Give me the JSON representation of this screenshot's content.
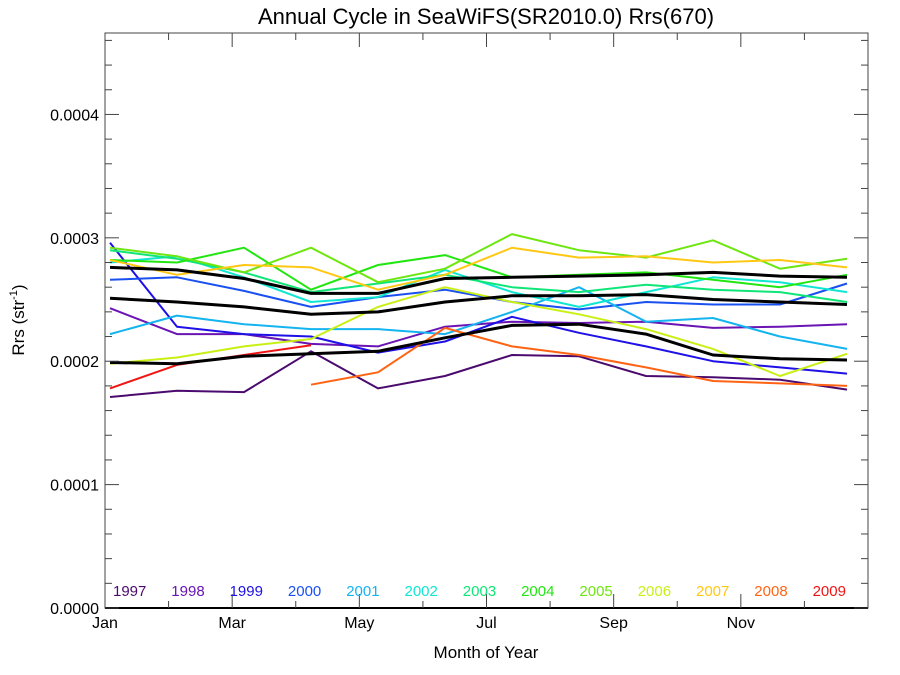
{
  "chart_data": {
    "type": "line",
    "title": "Annual Cycle in SeaWiFS(SR2010.0) Rrs(670)",
    "xlabel": "Month of Year",
    "ylabel": "Rrs (str",
    "ylabel_superscript": "-1",
    "ylabel_suffix": ")",
    "xlim": [
      1,
      13
    ],
    "ylim": [
      0.0,
      0.000466
    ],
    "x_ticks": [
      {
        "value": 1,
        "label": "Jan"
      },
      {
        "value": 3,
        "label": "Mar"
      },
      {
        "value": 5,
        "label": "May"
      },
      {
        "value": 7,
        "label": "Jul"
      },
      {
        "value": 9,
        "label": "Sep"
      },
      {
        "value": 11,
        "label": "Nov"
      }
    ],
    "y_ticks": [
      {
        "value": 0.0,
        "label": "0.0000"
      },
      {
        "value": 0.0001,
        "label": "0.0001"
      },
      {
        "value": 0.0002,
        "label": "0.0002"
      },
      {
        "value": 0.0003,
        "label": "0.0003"
      },
      {
        "value": 0.0004,
        "label": "0.0004"
      }
    ],
    "grid": false,
    "legend_placement": "bottom-inside",
    "x": [
      1,
      2,
      3,
      4,
      5,
      6,
      7,
      8,
      9,
      10,
      11,
      12
    ],
    "series": [
      {
        "name": "1997",
        "color": "#4b0a6e",
        "values": [
          0.000171,
          0.000176,
          0.000175,
          0.000208,
          0.000178,
          0.000188,
          0.000205,
          0.000204,
          0.000188,
          0.000187,
          0.000185,
          0.000177
        ]
      },
      {
        "name": "1998",
        "color": "#6a14b4",
        "values": [
          0.000243,
          0.000222,
          0.000222,
          0.000214,
          0.000212,
          0.000228,
          0.000232,
          0.000231,
          0.000232,
          0.000227,
          0.000228,
          0.00023
        ]
      },
      {
        "name": "1999",
        "color": "#1e10e6",
        "values": [
          0.000296,
          0.000228,
          0.000222,
          0.00022,
          0.000207,
          0.000216,
          0.000236,
          0.000223,
          0.000212,
          0.0002,
          0.000195,
          0.00019
        ]
      },
      {
        "name": "2000",
        "color": "#1a50f0",
        "values": [
          0.000266,
          0.000268,
          0.000257,
          0.000244,
          0.000252,
          0.000258,
          0.000248,
          0.000242,
          0.000248,
          0.000246,
          0.000246,
          0.000263
        ]
      },
      {
        "name": "2001",
        "color": "#14b4f0",
        "values": [
          0.000222,
          0.000237,
          0.00023,
          0.000226,
          0.000226,
          0.000222,
          0.00024,
          0.00026,
          0.000232,
          0.000235,
          0.00022,
          0.00021
        ]
      },
      {
        "name": "2002",
        "color": "#10e6d2",
        "values": [
          0.00028,
          0.000285,
          0.000268,
          0.000248,
          0.000252,
          0.000274,
          0.000256,
          0.000244,
          0.000256,
          0.000268,
          0.000264,
          0.000256
        ]
      },
      {
        "name": "2003",
        "color": "#10e678",
        "values": [
          0.00029,
          0.000283,
          0.000272,
          0.000256,
          0.000263,
          0.00027,
          0.00026,
          0.000256,
          0.000262,
          0.000258,
          0.000256,
          0.000248
        ]
      },
      {
        "name": "2004",
        "color": "#22e610",
        "values": [
          0.000282,
          0.00028,
          0.000292,
          0.000258,
          0.000278,
          0.000286,
          0.000268,
          0.00027,
          0.000272,
          0.000266,
          0.00026,
          0.00027
        ]
      },
      {
        "name": "2005",
        "color": "#6ee610",
        "values": [
          0.000292,
          0.000285,
          0.000272,
          0.000292,
          0.000264,
          0.000275,
          0.000303,
          0.00029,
          0.000284,
          0.000298,
          0.000275,
          0.000283
        ]
      },
      {
        "name": "2006",
        "color": "#c8f014",
        "values": [
          0.000198,
          0.000203,
          0.000212,
          0.000218,
          0.000244,
          0.00026,
          0.000248,
          0.000238,
          0.000226,
          0.00021,
          0.000188,
          0.000206
        ]
      },
      {
        "name": "2007",
        "color": "#ffc814",
        "values": [
          0.000282,
          0.00027,
          0.000278,
          0.000276,
          0.000258,
          0.00027,
          0.000292,
          0.000284,
          0.000285,
          0.00028,
          0.000282,
          0.000276
        ]
      },
      {
        "name": "2008",
        "color": "#ff6414",
        "values": [
          null,
          null,
          null,
          0.000181,
          0.000191,
          0.000227,
          0.000212,
          0.000205,
          0.000195,
          0.000184,
          0.000182,
          0.00018
        ]
      },
      {
        "name": "2009",
        "color": "#f01414",
        "values": [
          0.000178,
          0.000197,
          0.000205,
          0.000213,
          null,
          null,
          null,
          null,
          null,
          null,
          null,
          null
        ]
      },
      {
        "name": "mean_plus_std",
        "color": "#000000",
        "values": [
          0.000276,
          0.000274,
          0.000267,
          0.000255,
          0.000255,
          0.000267,
          0.000268,
          0.000269,
          0.00027,
          0.000272,
          0.000269,
          0.000268
        ]
      },
      {
        "name": "mean",
        "color": "#000000",
        "values": [
          0.000251,
          0.000248,
          0.000244,
          0.000238,
          0.00024,
          0.000248,
          0.000253,
          0.000253,
          0.000254,
          0.00025,
          0.000248,
          0.000246
        ]
      },
      {
        "name": "mean_minus_std",
        "color": "#000000",
        "values": [
          0.000199,
          0.000198,
          0.000204,
          0.000206,
          0.000208,
          0.000219,
          0.000229,
          0.00023,
          0.000222,
          0.000205,
          0.000202,
          0.000201
        ]
      }
    ],
    "legend": [
      {
        "label": "1997",
        "color": "#4b0a6e"
      },
      {
        "label": "1998",
        "color": "#6a14b4"
      },
      {
        "label": "1999",
        "color": "#1e10e6"
      },
      {
        "label": "2000",
        "color": "#1a50f0"
      },
      {
        "label": "2001",
        "color": "#14b4f0"
      },
      {
        "label": "2002",
        "color": "#10e6d2"
      },
      {
        "label": "2003",
        "color": "#10e678"
      },
      {
        "label": "2004",
        "color": "#22e610"
      },
      {
        "label": "2005",
        "color": "#6ee610"
      },
      {
        "label": "2006",
        "color": "#c8f014"
      },
      {
        "label": "2007",
        "color": "#ffc814"
      },
      {
        "label": "2008",
        "color": "#ff6414"
      },
      {
        "label": "2009",
        "color": "#f01414"
      }
    ]
  }
}
